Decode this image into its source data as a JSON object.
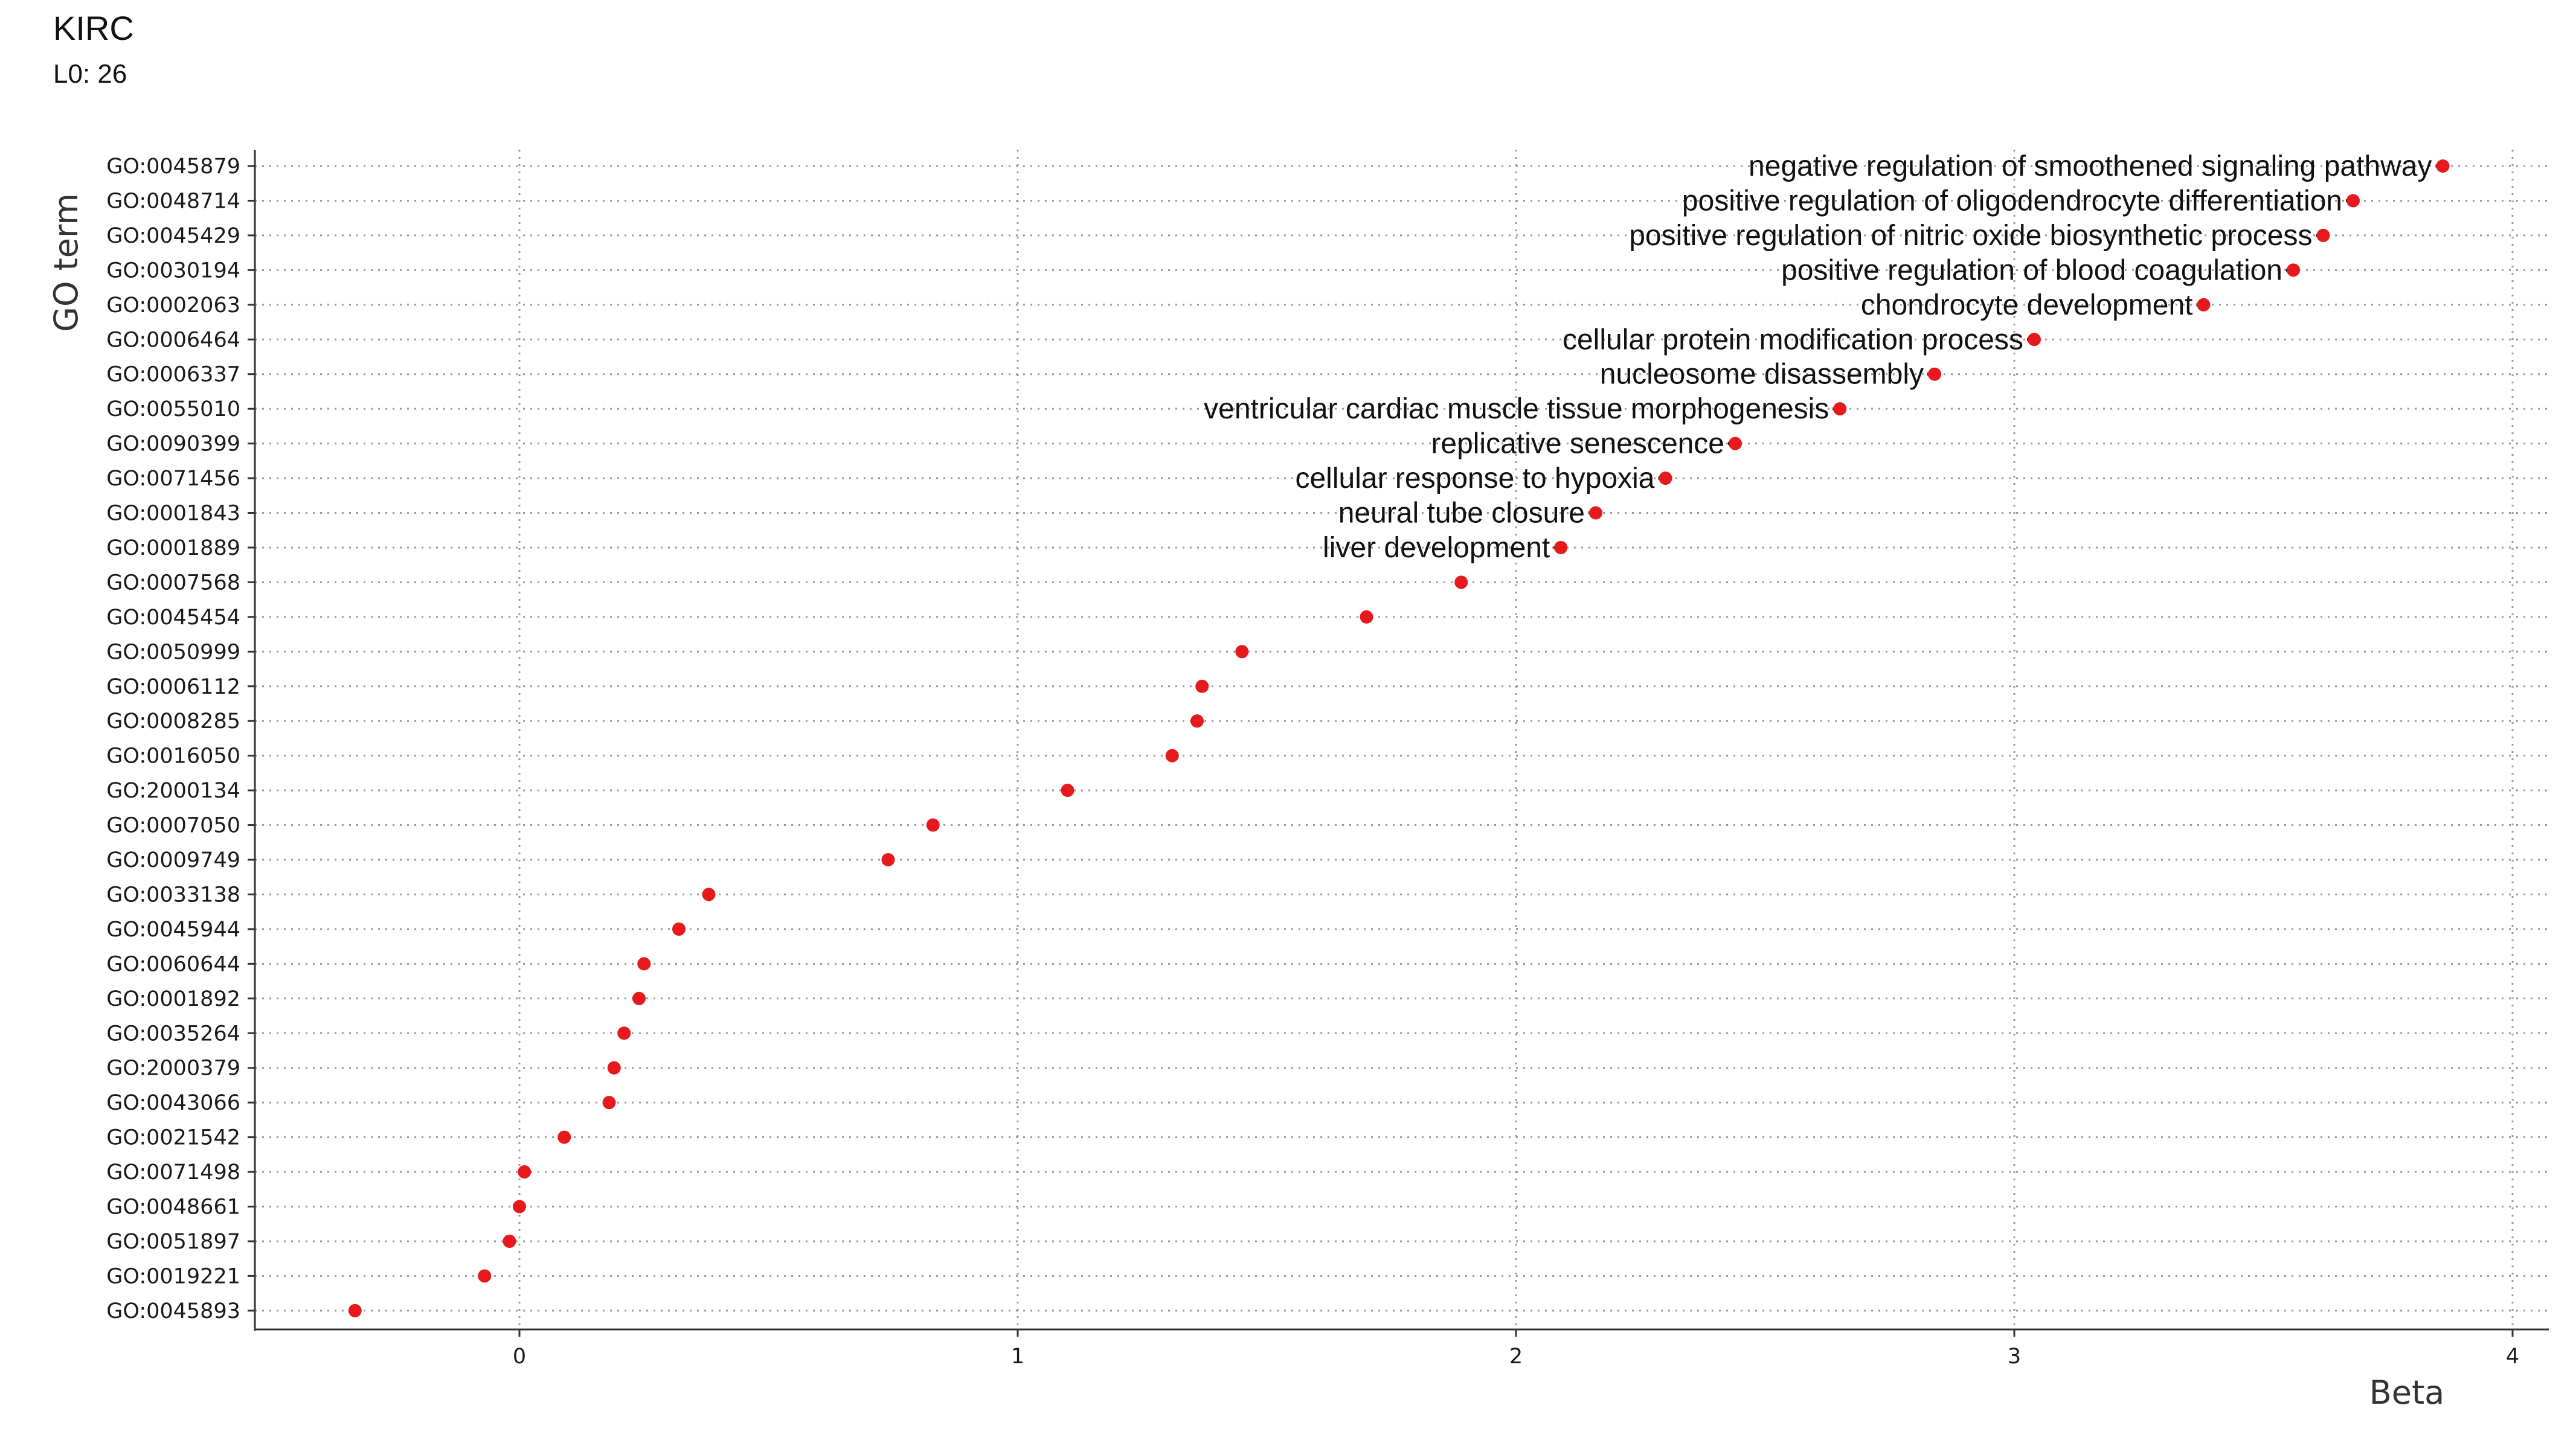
{
  "header": {
    "title": "KIRC",
    "subtitle": "L0: 26"
  },
  "chart_data": {
    "type": "lollipop",
    "xlabel": "Beta",
    "ylabel": "GO term",
    "xlim": [
      -0.53,
      4.07
    ],
    "xticks": [
      0,
      1,
      2,
      3,
      4
    ],
    "grid": true,
    "point_color": "#e8191c",
    "terms": [
      {
        "go": "GO:0045879",
        "beta": 3.86,
        "description": "negative regulation of smoothened signaling pathway"
      },
      {
        "go": "GO:0048714",
        "beta": 3.68,
        "description": "positive regulation of oligodendrocyte differentiation"
      },
      {
        "go": "GO:0045429",
        "beta": 3.62,
        "description": "positive regulation of nitric oxide biosynthetic process"
      },
      {
        "go": "GO:0030194",
        "beta": 3.56,
        "description": "positive regulation of blood coagulation"
      },
      {
        "go": "GO:0002063",
        "beta": 3.38,
        "description": "chondrocyte development"
      },
      {
        "go": "GO:0006464",
        "beta": 3.04,
        "description": "cellular protein modification process"
      },
      {
        "go": "GO:0006337",
        "beta": 2.84,
        "description": "nucleosome disassembly"
      },
      {
        "go": "GO:0055010",
        "beta": 2.65,
        "description": "ventricular cardiac muscle tissue morphogenesis"
      },
      {
        "go": "GO:0090399",
        "beta": 2.44,
        "description": "replicative senescence"
      },
      {
        "go": "GO:0071456",
        "beta": 2.3,
        "description": "cellular response to hypoxia"
      },
      {
        "go": "GO:0001843",
        "beta": 2.16,
        "description": "neural tube closure"
      },
      {
        "go": "GO:0001889",
        "beta": 2.09,
        "description": "liver development"
      },
      {
        "go": "GO:0007568",
        "beta": 1.89,
        "description": ""
      },
      {
        "go": "GO:0045454",
        "beta": 1.7,
        "description": ""
      },
      {
        "go": "GO:0050999",
        "beta": 1.45,
        "description": ""
      },
      {
        "go": "GO:0006112",
        "beta": 1.37,
        "description": ""
      },
      {
        "go": "GO:0008285",
        "beta": 1.36,
        "description": ""
      },
      {
        "go": "GO:0016050",
        "beta": 1.31,
        "description": ""
      },
      {
        "go": "GO:2000134",
        "beta": 1.1,
        "description": ""
      },
      {
        "go": "GO:0007050",
        "beta": 0.83,
        "description": ""
      },
      {
        "go": "GO:0009749",
        "beta": 0.74,
        "description": ""
      },
      {
        "go": "GO:0033138",
        "beta": 0.38,
        "description": ""
      },
      {
        "go": "GO:0045944",
        "beta": 0.32,
        "description": ""
      },
      {
        "go": "GO:0060644",
        "beta": 0.25,
        "description": ""
      },
      {
        "go": "GO:0001892",
        "beta": 0.24,
        "description": ""
      },
      {
        "go": "GO:0035264",
        "beta": 0.21,
        "description": ""
      },
      {
        "go": "GO:2000379",
        "beta": 0.19,
        "description": ""
      },
      {
        "go": "GO:0043066",
        "beta": 0.18,
        "description": ""
      },
      {
        "go": "GO:0021542",
        "beta": 0.09,
        "description": ""
      },
      {
        "go": "GO:0071498",
        "beta": 0.01,
        "description": ""
      },
      {
        "go": "GO:0048661",
        "beta": 0.0,
        "description": ""
      },
      {
        "go": "GO:0051897",
        "beta": -0.02,
        "description": ""
      },
      {
        "go": "GO:0019221",
        "beta": -0.07,
        "description": ""
      },
      {
        "go": "GO:0045893",
        "beta": -0.33,
        "description": ""
      }
    ]
  }
}
